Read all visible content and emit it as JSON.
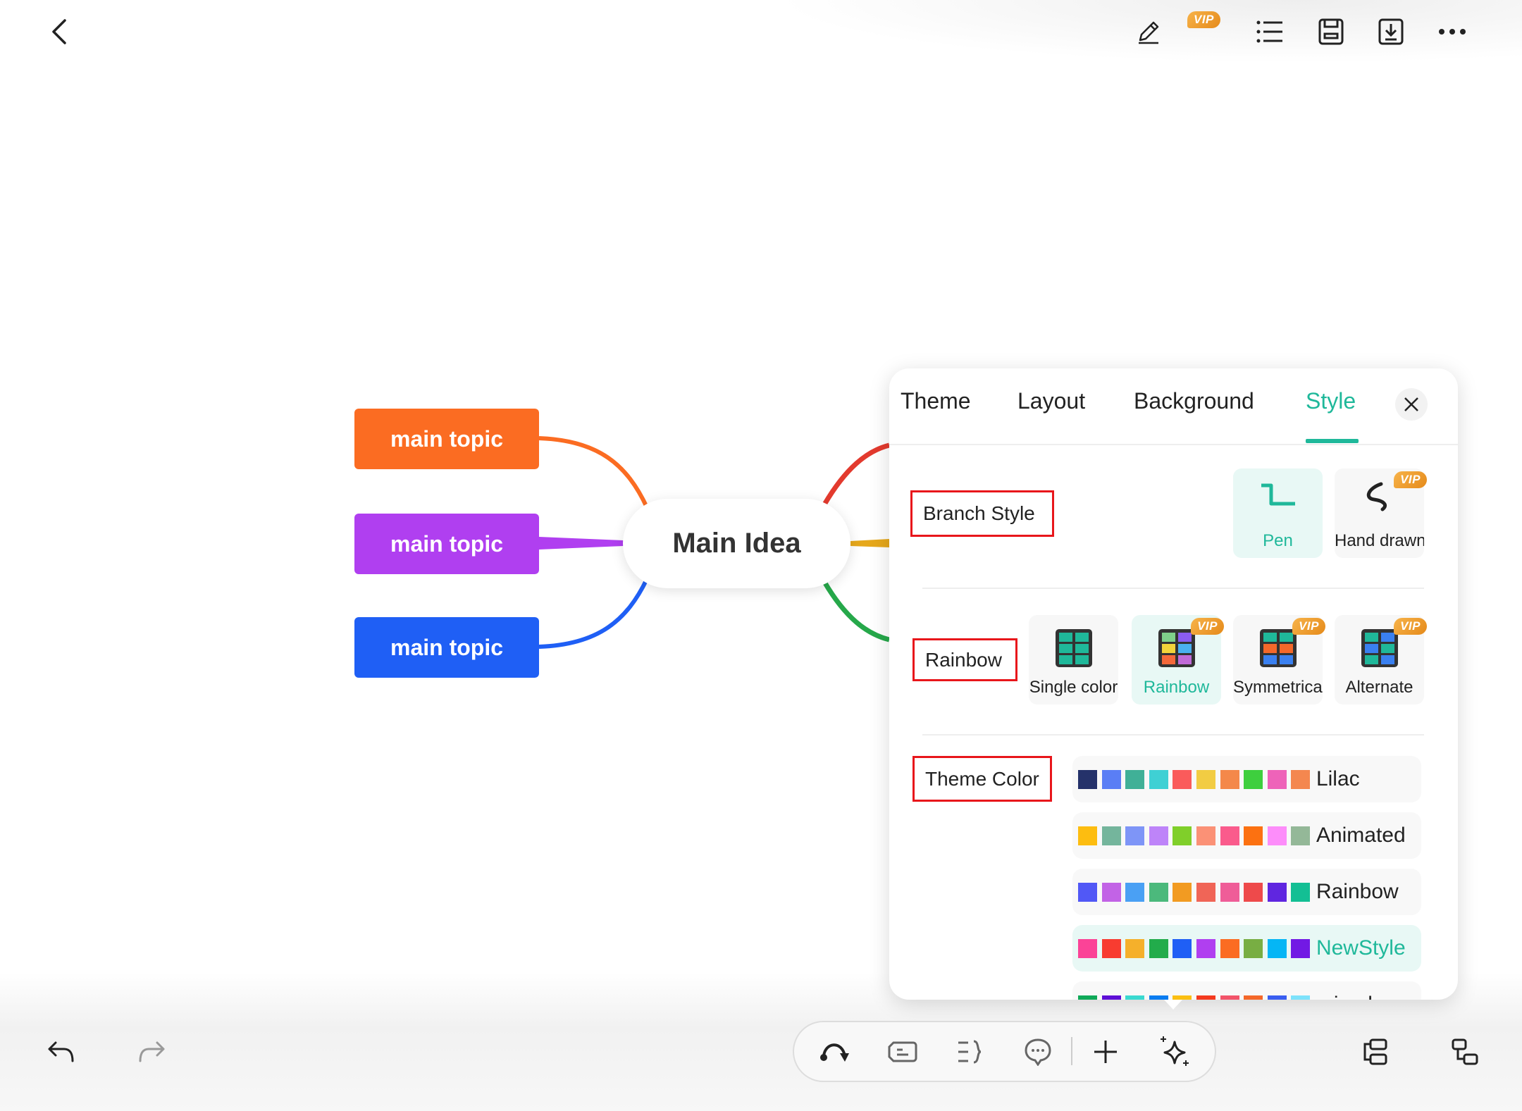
{
  "topbar": {
    "back_icon": "chevron-left-icon",
    "vip_badge": "VIP",
    "icons": [
      "pen-icon",
      "list-icon",
      "save-icon",
      "download-icon",
      "more-icon"
    ]
  },
  "mindmap": {
    "main_idea": "Main Idea",
    "topics": [
      {
        "label": "main topic",
        "color": "#fb6c22"
      },
      {
        "label": "main topic",
        "color": "#b03ff0"
      },
      {
        "label": "main topic",
        "color": "#1f5ff5"
      }
    ],
    "right_branch_colors": [
      "#e33a2e",
      "#e6a81c",
      "#26a84a"
    ]
  },
  "panel": {
    "tabs": [
      {
        "label": "Theme"
      },
      {
        "label": "Layout"
      },
      {
        "label": "Background"
      },
      {
        "label": "Style"
      }
    ],
    "active_tab": "Style",
    "accent": "#1fb89a",
    "branch_style": {
      "label": "Branch Style",
      "options": [
        {
          "label": "Pen",
          "selected": true,
          "vip": false
        },
        {
          "label": "Hand drawn",
          "selected": false,
          "vip": true,
          "vip_text": "VIP"
        }
      ]
    },
    "rainbow": {
      "label": "Rainbow",
      "options": [
        {
          "label": "Single color",
          "selected": false,
          "vip": false
        },
        {
          "label": "Rainbow",
          "selected": true,
          "vip": true,
          "vip_text": "VIP"
        },
        {
          "label": "Symmetrical",
          "selected": false,
          "vip": true,
          "vip_text": "VIP"
        },
        {
          "label": "Alternate",
          "selected": false,
          "vip": true,
          "vip_text": "VIP"
        }
      ]
    },
    "theme_color": {
      "label": "Theme Color",
      "palettes": [
        {
          "name": "Lilac",
          "selected": false,
          "colors": [
            "#25326a",
            "#5a7ef5",
            "#40b097",
            "#3fd0d4",
            "#fa5b5b",
            "#f2cc43",
            "#f4884a",
            "#3ecf3e",
            "#ee63b9",
            "#f4874f"
          ]
        },
        {
          "name": "Animated",
          "selected": false,
          "colors": [
            "#fdbd10",
            "#74b59c",
            "#7e95f7",
            "#be84f9",
            "#80cf2a",
            "#fb9176",
            "#fa5b8c",
            "#fc7111",
            "#fd8dfa",
            "#94b898"
          ]
        },
        {
          "name": "Rainbow",
          "selected": false,
          "colors": [
            "#5158f6",
            "#c263e6",
            "#4aa0f4",
            "#4cb97c",
            "#f29b22",
            "#f06557",
            "#ef5d98",
            "#ee4a4b",
            "#6026e0",
            "#13bf94"
          ]
        },
        {
          "name": "NewStyle",
          "selected": true,
          "colors": [
            "#fb4397",
            "#f83c30",
            "#f5b02b",
            "#22ac4b",
            "#1f5ff5",
            "#b03ff0",
            "#fb6c22",
            "#78ae43",
            "#05b6f5",
            "#7219e4"
          ]
        },
        {
          "name": "mixed",
          "selected": false,
          "colors": [
            "#0fa958",
            "#5e0fd6",
            "#3ad9d0",
            "#0a7cf0",
            "#fbbf12",
            "#f43a1f",
            "#f2546a",
            "#f4682a",
            "#3a5ef0",
            "#7de2fb"
          ]
        }
      ]
    }
  },
  "bottom_toolbar": {
    "icons": [
      "branch-flow-icon",
      "topic-icon",
      "summary-icon",
      "comment-icon",
      "add-icon",
      "ai-sparkle-icon"
    ]
  },
  "bottom_left": {
    "icons": [
      "undo-icon",
      "redo-icon"
    ]
  },
  "bottom_right": {
    "icons": [
      "layout-tree-icon",
      "layout-sub-icon"
    ]
  }
}
